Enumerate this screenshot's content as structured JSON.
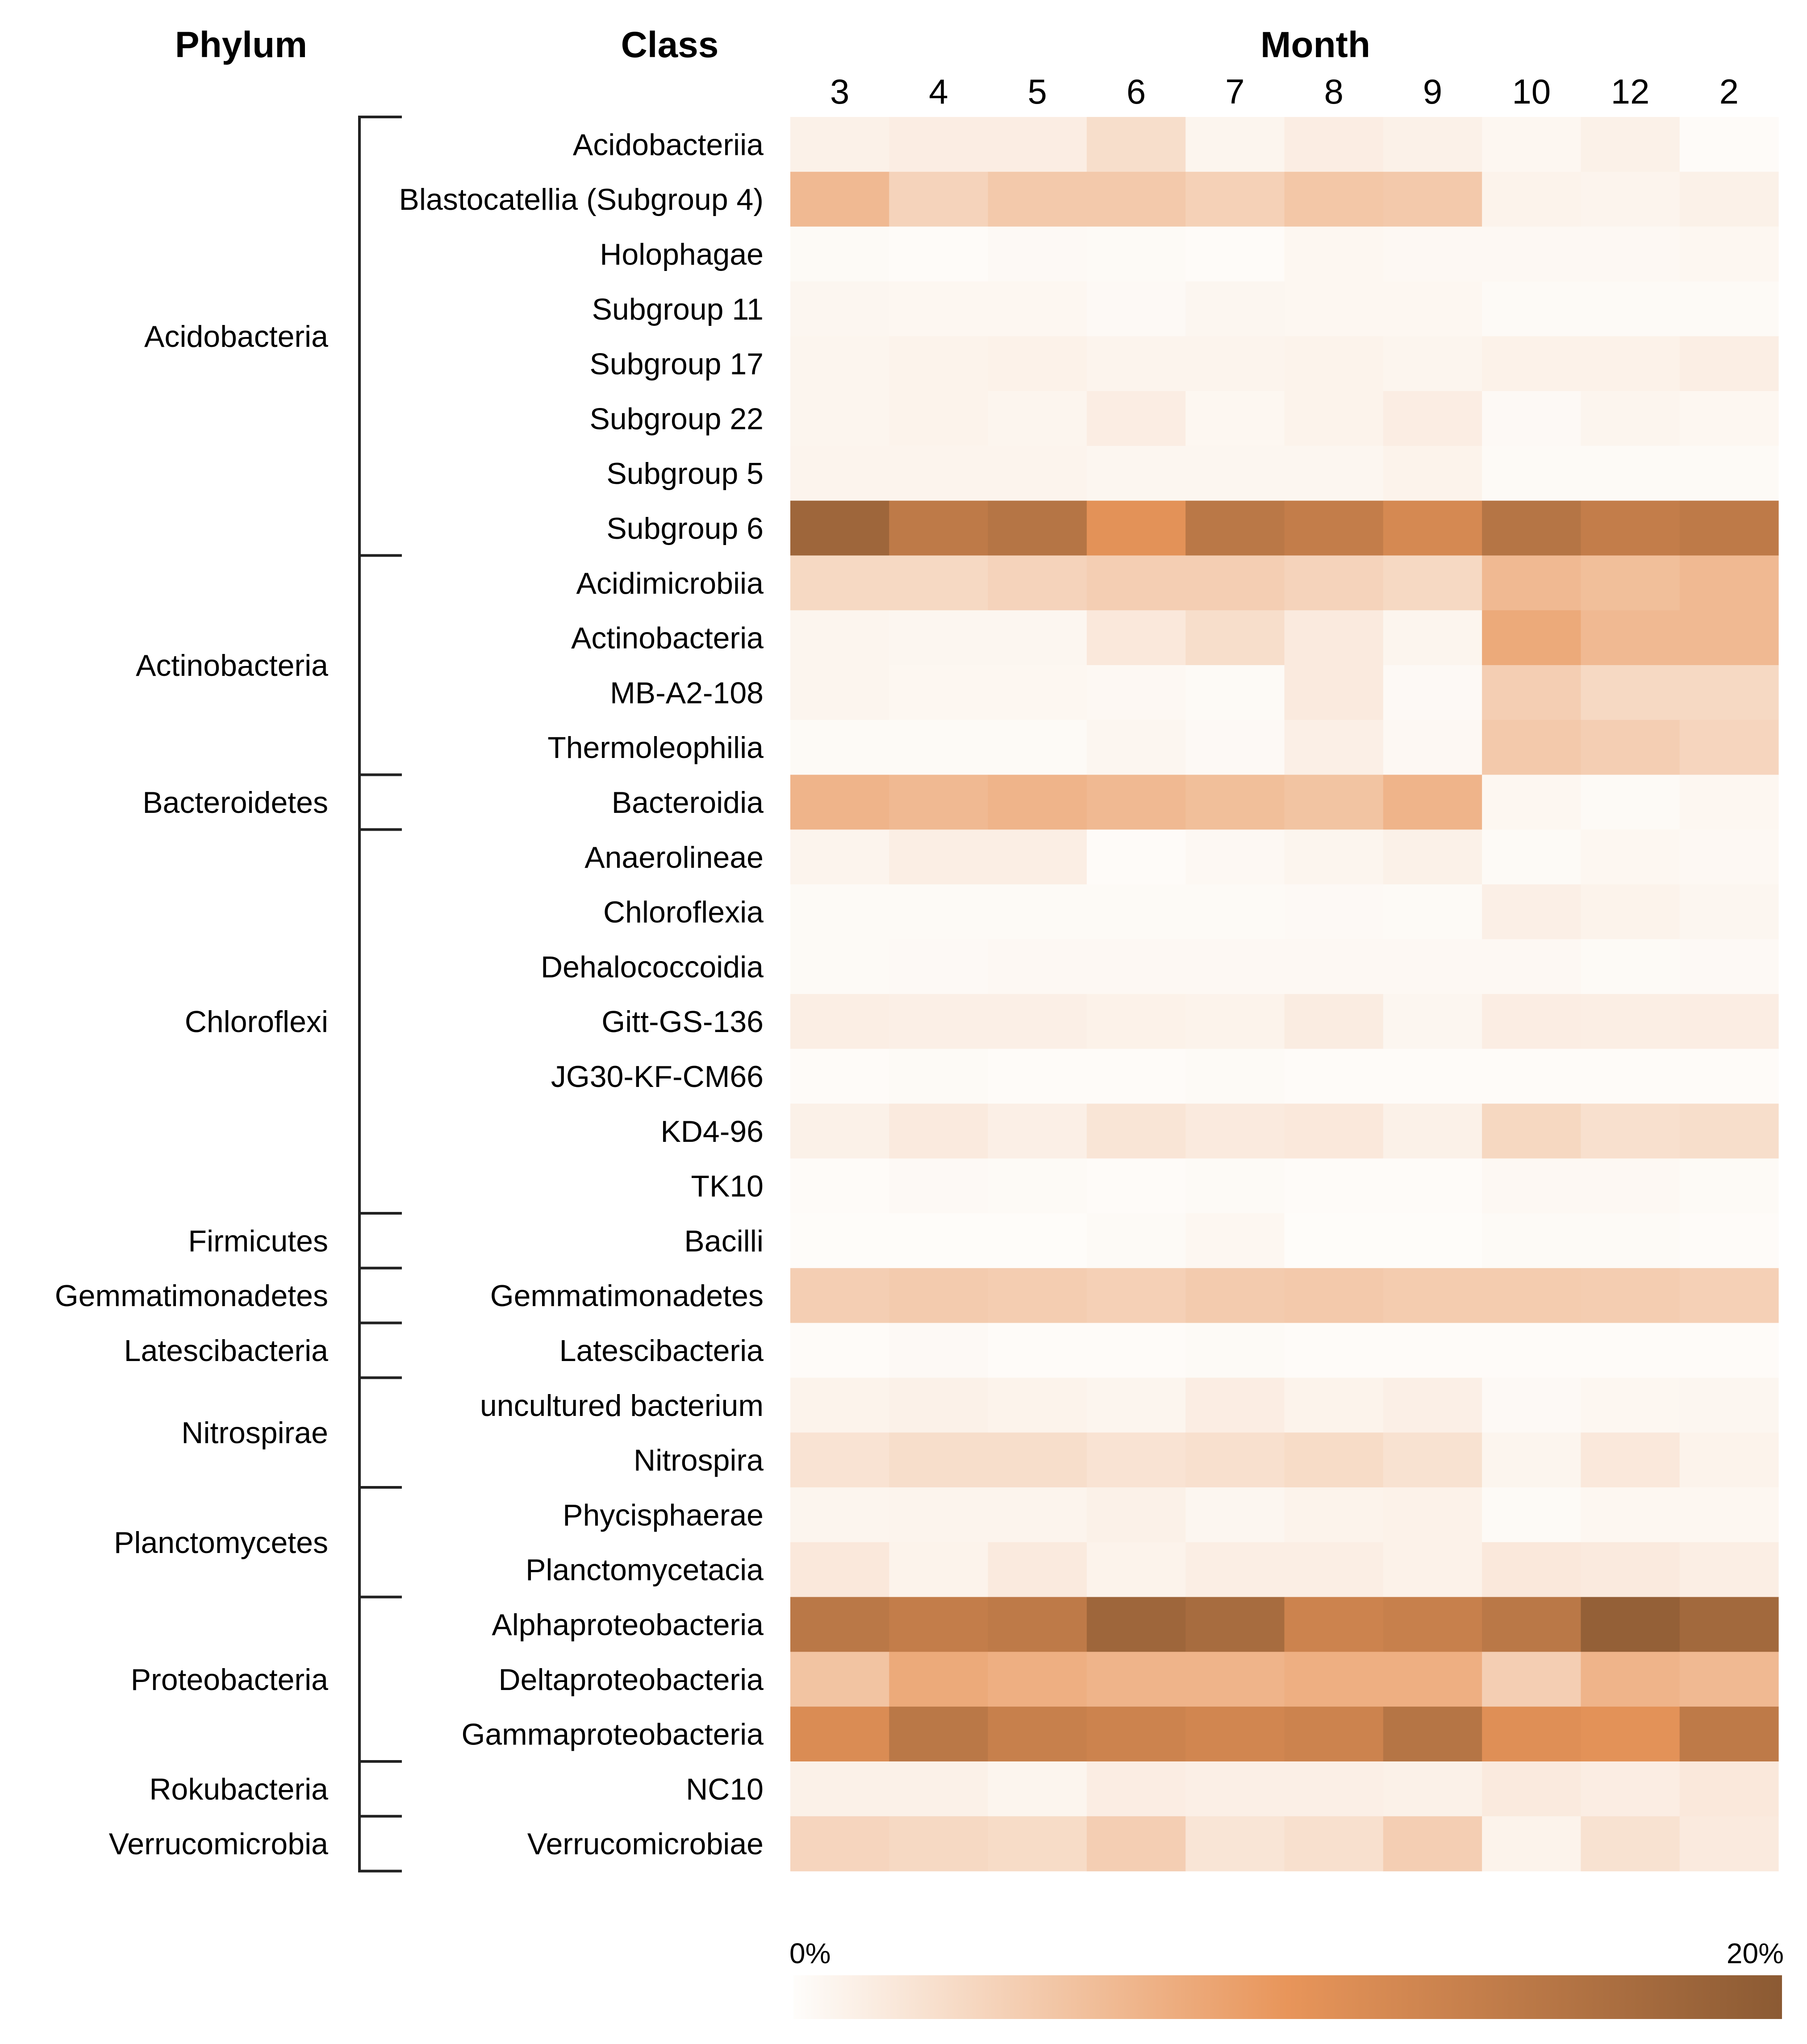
{
  "headers": {
    "phylum": "Phylum",
    "class": "Class",
    "month": "Month"
  },
  "chart_data": {
    "type": "heatmap",
    "title": "",
    "x_title": "Month",
    "y_titles": [
      "Phylum",
      "Class"
    ],
    "value_unit": "% relative abundance (approx.)",
    "color_scale": {
      "min_label": "0%",
      "max_label": "20%",
      "min": 0,
      "max": 20,
      "colors": [
        "#fefdfb",
        "#e8955a",
        "#8b5a33"
      ]
    },
    "months": [
      "3",
      "4",
      "5",
      "6",
      "7",
      "8",
      "9",
      "10",
      "12",
      "2"
    ],
    "phyla": [
      {
        "name": "Acidobacteria",
        "classes": [
          "Acidobacteriia",
          "Blastocatellia (Subgroup 4)",
          "Holophagae",
          "Subgroup 11",
          "Subgroup 17",
          "Subgroup 22",
          "Subgroup 5",
          "Subgroup 6"
        ]
      },
      {
        "name": "Actinobacteria",
        "classes": [
          "Acidimicrobiia",
          "Actinobacteria",
          "MB-A2-108",
          "Thermoleophilia"
        ]
      },
      {
        "name": "Bacteroidetes",
        "classes": [
          "Bacteroidia"
        ]
      },
      {
        "name": "Chloroflexi",
        "classes": [
          "Anaerolineae",
          "Chloroflexia",
          "Dehalococcoidia",
          "Gitt-GS-136",
          "JG30-KF-CM66",
          "KD4-96",
          "TK10"
        ]
      },
      {
        "name": "Firmicutes",
        "classes": [
          "Bacilli"
        ]
      },
      {
        "name": "Gemmatimonadetes",
        "classes": [
          "Gemmatimonadetes"
        ]
      },
      {
        "name": "Latescibacteria",
        "classes": [
          "Latescibacteria"
        ]
      },
      {
        "name": "Nitrospirae",
        "classes": [
          "uncultured bacterium",
          "Nitrospira"
        ]
      },
      {
        "name": "Planctomycetes",
        "classes": [
          "Phycisphaerae",
          "Planctomycetacia"
        ]
      },
      {
        "name": "Proteobacteria",
        "classes": [
          "Alphaproteobacteria",
          "Deltaproteobacteria",
          "Gammaproteobacteria"
        ]
      },
      {
        "name": "Rokubacteria",
        "classes": [
          "NC10"
        ]
      },
      {
        "name": "Verrucomicrobia",
        "classes": [
          "Verrucomicrobiae"
        ]
      }
    ],
    "values": [
      [
        1.2,
        1.5,
        1.5,
        3.0,
        0.8,
        1.5,
        1.2,
        0.6,
        1.2,
        0.2
      ],
      [
        6.5,
        4.0,
        5.0,
        5.0,
        4.2,
        5.2,
        5.0,
        1.0,
        0.9,
        1.2
      ],
      [
        0.3,
        0.2,
        0.4,
        0.3,
        0.2,
        0.6,
        0.5,
        0.5,
        0.5,
        0.6
      ],
      [
        0.7,
        0.6,
        0.6,
        0.4,
        0.7,
        0.6,
        0.6,
        0.3,
        0.3,
        0.3
      ],
      [
        0.8,
        1.0,
        1.1,
        0.9,
        0.9,
        1.0,
        0.8,
        1.1,
        1.1,
        1.4
      ],
      [
        0.8,
        1.0,
        0.8,
        1.5,
        0.6,
        1.0,
        1.5,
        0.4,
        0.8,
        0.6
      ],
      [
        0.9,
        0.9,
        0.9,
        0.7,
        0.7,
        0.7,
        1.0,
        0.3,
        0.3,
        0.3
      ],
      [
        18.0,
        14.5,
        15.5,
        10.5,
        15.0,
        14.0,
        12.0,
        15.5,
        14.0,
        14.5
      ],
      [
        3.5,
        3.5,
        4.0,
        4.5,
        4.5,
        4.0,
        3.5,
        6.5,
        6.0,
        6.5
      ],
      [
        0.8,
        0.7,
        0.7,
        2.0,
        3.0,
        1.8,
        0.8,
        8.0,
        6.5,
        6.5
      ],
      [
        0.8,
        0.6,
        0.6,
        0.5,
        0.3,
        1.8,
        0.4,
        4.5,
        3.5,
        3.5
      ],
      [
        0.3,
        0.3,
        0.3,
        0.7,
        0.4,
        1.3,
        0.5,
        5.0,
        4.5,
        3.8
      ],
      [
        7.0,
        6.5,
        7.0,
        6.5,
        6.0,
        5.5,
        7.0,
        0.6,
        0.3,
        0.6
      ],
      [
        0.9,
        1.4,
        1.4,
        0.2,
        0.5,
        0.8,
        1.2,
        0.3,
        0.6,
        0.5
      ],
      [
        0.3,
        0.3,
        0.3,
        0.3,
        0.3,
        0.4,
        0.3,
        1.3,
        1.0,
        0.7
      ],
      [
        0.3,
        0.4,
        0.5,
        0.5,
        0.5,
        0.5,
        0.5,
        0.5,
        0.3,
        0.4
      ],
      [
        1.4,
        1.3,
        1.3,
        1.1,
        1.0,
        1.6,
        0.7,
        1.5,
        1.4,
        1.5
      ],
      [
        0.2,
        0.3,
        0.2,
        0.2,
        0.3,
        0.2,
        0.2,
        0.2,
        0.2,
        0.2
      ],
      [
        1.2,
        1.8,
        1.3,
        2.3,
        1.8,
        2.0,
        1.2,
        3.6,
        2.8,
        3.0
      ],
      [
        0.2,
        0.4,
        0.3,
        0.2,
        0.3,
        0.2,
        0.2,
        0.5,
        0.5,
        0.3
      ],
      [
        0.1,
        0.1,
        0.1,
        0.3,
        0.6,
        0.1,
        0.1,
        0.3,
        0.3,
        0.2
      ],
      [
        4.5,
        4.8,
        4.6,
        4.3,
        4.8,
        5.0,
        4.7,
        4.7,
        4.6,
        4.3
      ],
      [
        0.2,
        0.4,
        0.2,
        0.2,
        0.3,
        0.2,
        0.2,
        0.2,
        0.2,
        0.2
      ],
      [
        1.0,
        1.2,
        1.0,
        0.8,
        1.5,
        1.0,
        1.3,
        0.4,
        0.6,
        0.7
      ],
      [
        2.5,
        3.0,
        3.0,
        2.5,
        2.8,
        3.2,
        2.6,
        0.8,
        2.0,
        1.0
      ],
      [
        0.8,
        0.9,
        0.9,
        1.2,
        0.7,
        1.0,
        1.1,
        0.3,
        0.6,
        0.6
      ],
      [
        2.0,
        1.0,
        1.8,
        1.0,
        1.4,
        1.4,
        1.1,
        2.0,
        1.8,
        1.4
      ],
      [
        15.0,
        14.0,
        14.5,
        18.0,
        17.0,
        13.0,
        13.5,
        15.0,
        19.0,
        17.5
      ],
      [
        5.5,
        8.0,
        7.5,
        7.0,
        7.0,
        7.5,
        7.5,
        4.5,
        7.0,
        6.5
      ],
      [
        11.5,
        15.0,
        13.5,
        13.0,
        12.5,
        13.0,
        15.5,
        11.0,
        10.5,
        14.5
      ],
      [
        1.2,
        1.2,
        0.8,
        1.5,
        1.3,
        1.3,
        1.2,
        1.8,
        1.5,
        2.0
      ],
      [
        3.8,
        3.5,
        3.2,
        4.5,
        2.3,
        2.8,
        4.5,
        1.0,
        2.6,
        1.8
      ]
    ]
  }
}
